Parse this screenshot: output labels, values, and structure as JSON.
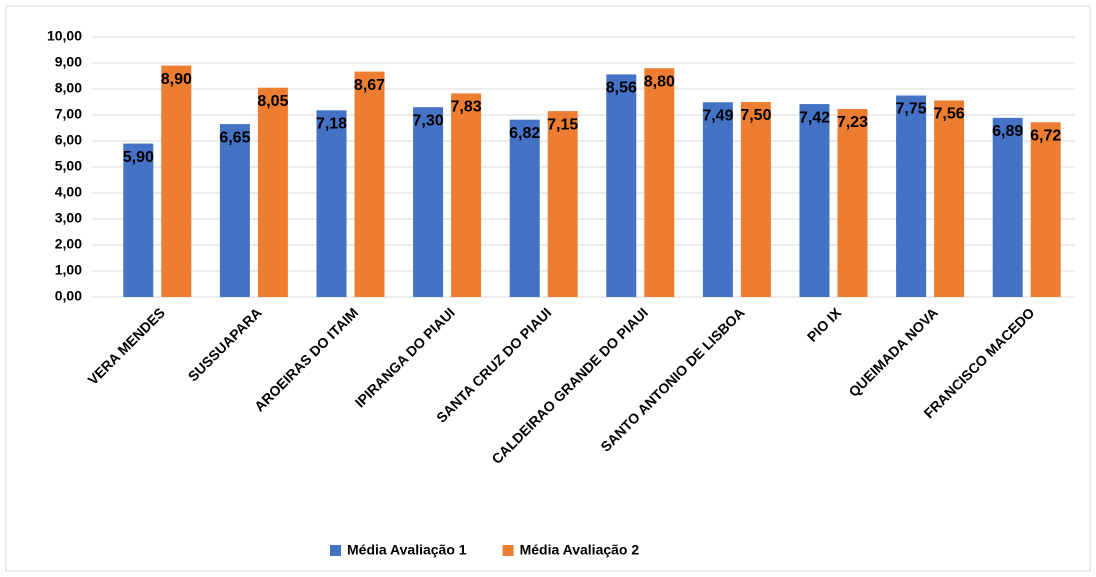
{
  "chart_data": {
    "type": "bar",
    "categories": [
      "VERA MENDES",
      "SUSSUAPARA",
      "AROEIRAS DO ITAIM",
      "IPIRANGA DO PIAUI",
      "SANTA CRUZ DO PIAUI",
      "CALDEIRAO GRANDE DO PIAUI",
      "SANTO ANTONIO DE LISBOA",
      "PIO IX",
      "QUEIMADA NOVA",
      "FRANCISCO MACEDO"
    ],
    "series": [
      {
        "name": "Média Avaliação 1",
        "color": "#4472c4",
        "values": [
          5.9,
          6.65,
          7.18,
          7.3,
          6.82,
          8.56,
          7.49,
          7.42,
          7.75,
          6.89
        ],
        "value_labels": [
          "5,90",
          "6,65",
          "7,18",
          "7,30",
          "6,82",
          "8,56",
          "7,49",
          "7,42",
          "7,75",
          "6,89"
        ]
      },
      {
        "name": "Média Avaliação 2",
        "color": "#ed7d31",
        "values": [
          8.9,
          8.05,
          8.67,
          7.83,
          7.15,
          8.8,
          7.5,
          7.23,
          7.56,
          6.72
        ],
        "value_labels": [
          "8,90",
          "8,05",
          "8,67",
          "7,83",
          "7,15",
          "8,80",
          "7,50",
          "7,23",
          "7,56",
          "6,72"
        ]
      }
    ],
    "ylim": [
      0,
      10
    ],
    "yticks": [
      {
        "value": 0,
        "label": "0,00"
      },
      {
        "value": 1,
        "label": "1,00"
      },
      {
        "value": 2,
        "label": "2,00"
      },
      {
        "value": 3,
        "label": "3,00"
      },
      {
        "value": 4,
        "label": "4,00"
      },
      {
        "value": 5,
        "label": "5,00"
      },
      {
        "value": 6,
        "label": "6,00"
      },
      {
        "value": 7,
        "label": "7,00"
      },
      {
        "value": 8,
        "label": "8,00"
      },
      {
        "value": 9,
        "label": "9,00"
      },
      {
        "value": 10,
        "label": "10,00"
      }
    ],
    "grid": true,
    "legend": "bottom"
  }
}
